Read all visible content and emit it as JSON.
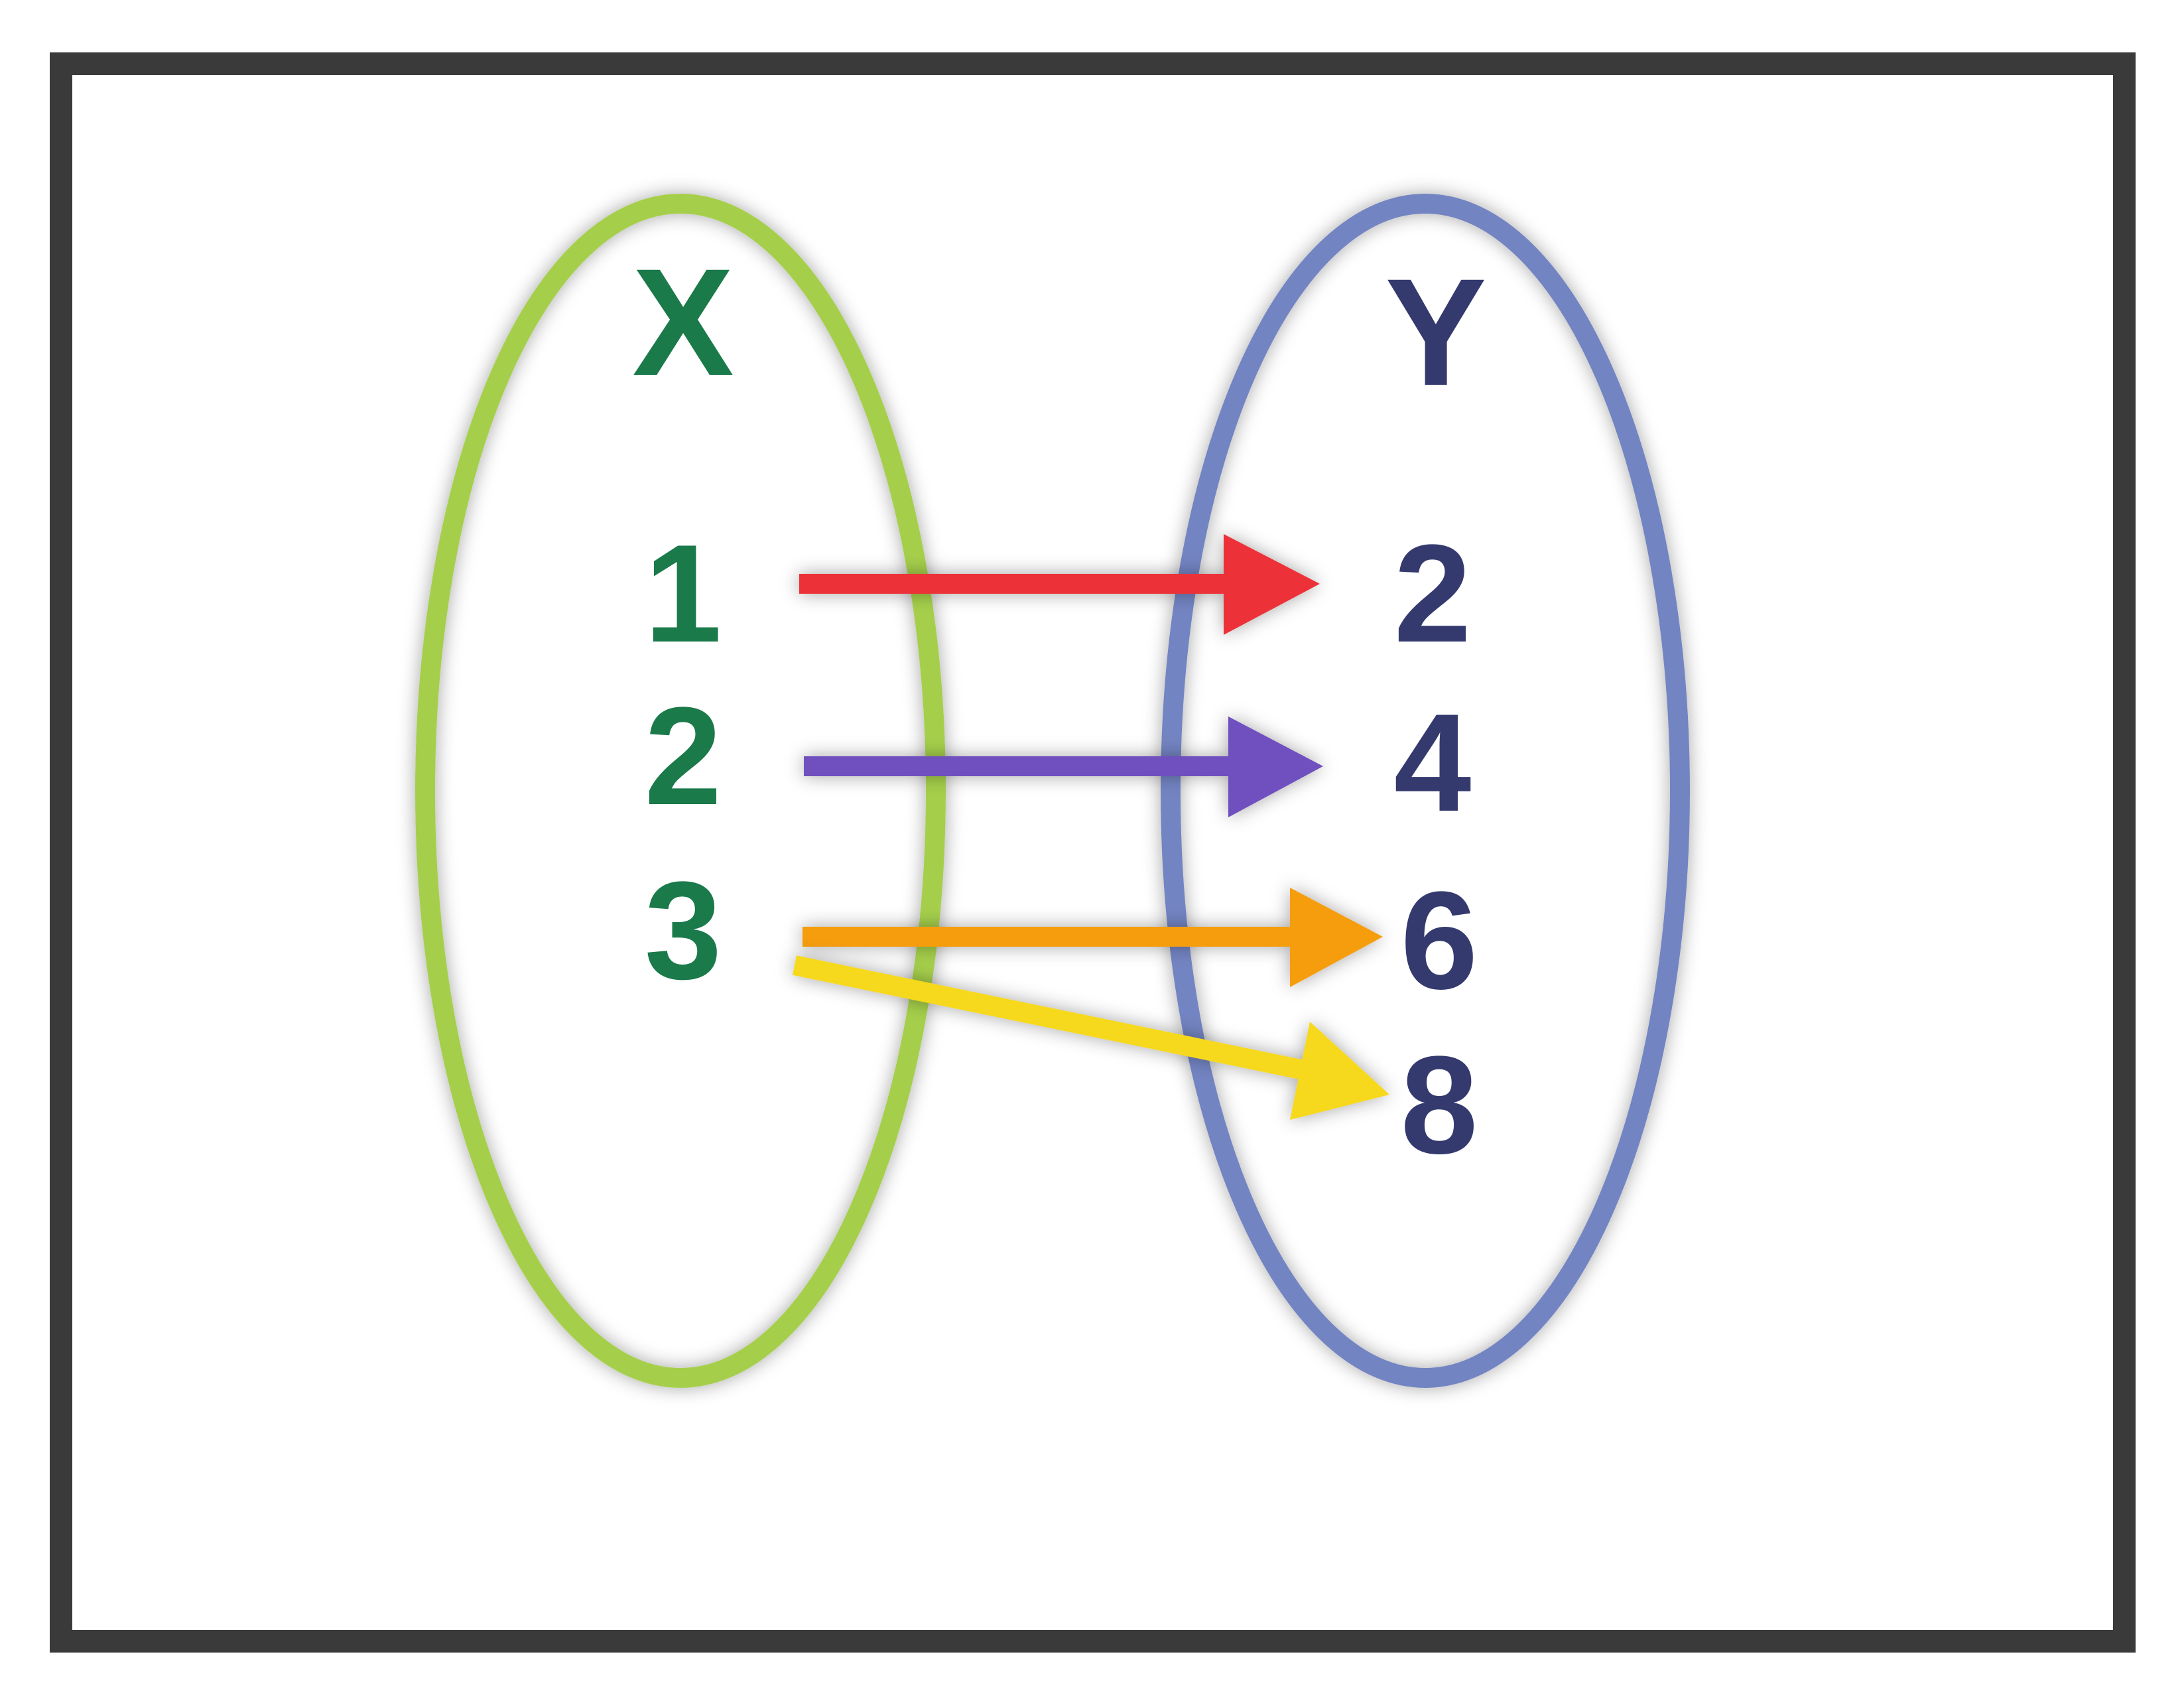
{
  "diagram": {
    "domain_set": {
      "label": "X",
      "color": "#1a7a4a",
      "outline_color": "#a5cf4c",
      "values": [
        "1",
        "2",
        "3"
      ]
    },
    "range_set": {
      "label": "Y",
      "color": "#343a6e",
      "outline_color": "#7384c2",
      "values": [
        "2",
        "4",
        "6",
        "8"
      ]
    },
    "mappings": [
      {
        "from": "1",
        "to": "2",
        "color": "#ec3237"
      },
      {
        "from": "2",
        "to": "4",
        "color": "#6f4fbf"
      },
      {
        "from": "3",
        "to": "6",
        "color": "#f59d0d"
      },
      {
        "from": "3",
        "to": "8",
        "color": "#f6d81c"
      }
    ],
    "frame_color": "#3a3a3a"
  }
}
